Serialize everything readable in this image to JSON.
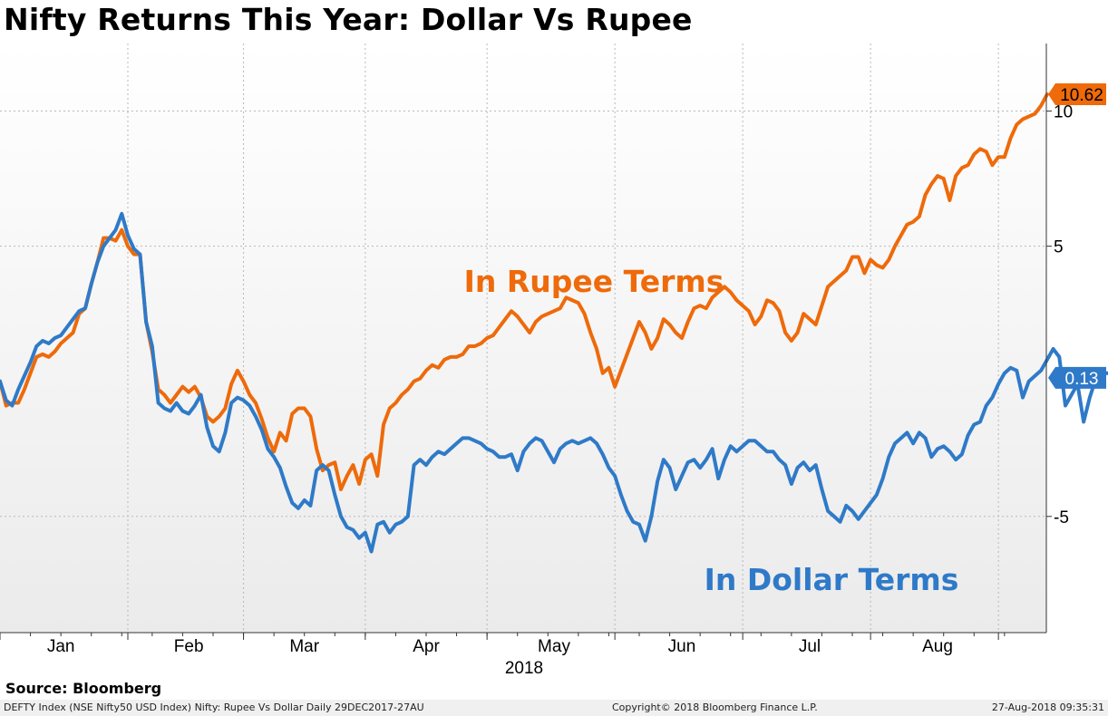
{
  "header": {
    "title": "Nifty Returns This Year: Dollar Vs Rupee"
  },
  "chart_data": {
    "type": "line",
    "title": "Nifty Returns This Year: Dollar Vs Rupee",
    "xlabel": "2018",
    "ylabel": "",
    "x_range": [
      0,
      168
    ],
    "ylim": [
      -9.3,
      12.5
    ],
    "grid": true,
    "y_ticks": [
      10,
      5,
      -5
    ],
    "y_tick_labels": [
      "10",
      "5",
      "-5"
    ],
    "month_labels": [
      {
        "label": "Jan",
        "x": 10
      },
      {
        "label": "Feb",
        "x": 31
      },
      {
        "label": "Mar",
        "x": 50
      },
      {
        "label": "Apr",
        "x": 70
      },
      {
        "label": "May",
        "x": 91
      },
      {
        "label": "Jun",
        "x": 112
      },
      {
        "label": "Jul",
        "x": 133
      },
      {
        "label": "Aug",
        "x": 154
      }
    ],
    "month_boundaries": [
      0,
      21,
      40,
      60,
      80,
      101,
      122,
      143,
      164
    ],
    "series": [
      {
        "name": "In Rupee Terms",
        "color": "#ee6a0a",
        "last_value_label": "10.62",
        "values": [
          0.0,
          -0.9,
          -0.8,
          -0.8,
          -0.3,
          0.3,
          0.9,
          1.0,
          0.9,
          1.1,
          1.4,
          1.6,
          1.8,
          2.5,
          2.7,
          3.6,
          4.4,
          5.3,
          5.3,
          5.2,
          5.6,
          5.0,
          4.7,
          4.7,
          2.2,
          1.1,
          -0.3,
          -0.5,
          -0.8,
          -0.5,
          -0.2,
          -0.4,
          -0.2,
          -0.6,
          -1.3,
          -1.5,
          -1.3,
          -1.0,
          -0.1,
          0.4,
          0.0,
          -0.5,
          -0.8,
          -1.4,
          -2.1,
          -2.6,
          -1.9,
          -2.2,
          -1.2,
          -1.0,
          -1.0,
          -1.3,
          -2.5,
          -3.3,
          -3.1,
          -3.0,
          -4.0,
          -3.5,
          -3.1,
          -3.8,
          -2.9,
          -2.7,
          -3.5,
          -1.6,
          -1.0,
          -0.8,
          -0.5,
          -0.3,
          0.0,
          0.1,
          0.4,
          0.6,
          0.5,
          0.8,
          0.9,
          0.9,
          1.0,
          1.3,
          1.3,
          1.4,
          1.6,
          1.7,
          2.0,
          2.3,
          2.6,
          2.4,
          2.1,
          1.8,
          2.2,
          2.4,
          2.5,
          2.6,
          2.7,
          3.1,
          3.0,
          2.9,
          2.5,
          1.8,
          1.2,
          0.3,
          0.5,
          -0.2,
          0.4,
          1.0,
          1.6,
          2.2,
          1.8,
          1.2,
          1.6,
          2.3,
          2.1,
          1.8,
          1.6,
          2.2,
          2.7,
          2.8,
          2.7,
          3.1,
          3.3,
          3.5,
          3.3,
          3.0,
          2.8,
          2.6,
          2.1,
          2.4,
          3.0,
          2.9,
          2.6,
          1.8,
          1.5,
          1.8,
          2.5,
          2.3,
          2.1,
          2.8,
          3.5,
          3.7,
          3.9,
          4.1,
          4.6,
          4.6,
          4.0,
          4.5,
          4.3,
          4.2,
          4.5,
          5.0,
          5.4,
          5.8,
          5.9,
          6.1,
          6.9,
          7.3,
          7.6,
          7.5,
          6.7,
          7.6,
          7.9,
          8.0,
          8.4,
          8.6,
          8.5,
          8.0,
          8.3,
          8.3,
          9.0,
          9.5,
          9.7,
          9.8,
          9.9,
          10.2,
          10.62
        ]
      },
      {
        "name": "In Dollar Terms",
        "color": "#2f7ac8",
        "last_value_label": "0.13",
        "values": [
          0.0,
          -0.7,
          -0.9,
          -0.3,
          0.2,
          0.7,
          1.3,
          1.5,
          1.4,
          1.6,
          1.7,
          2.0,
          2.3,
          2.6,
          2.7,
          3.6,
          4.4,
          5.0,
          5.3,
          5.6,
          6.2,
          5.4,
          4.9,
          4.7,
          2.2,
          1.3,
          -0.8,
          -1.0,
          -1.1,
          -0.8,
          -1.1,
          -1.2,
          -0.9,
          -0.5,
          -1.7,
          -2.4,
          -2.6,
          -1.9,
          -0.8,
          -0.6,
          -0.7,
          -0.9,
          -1.3,
          -1.8,
          -2.5,
          -2.8,
          -3.2,
          -3.9,
          -4.5,
          -4.7,
          -4.4,
          -4.6,
          -3.3,
          -3.1,
          -3.3,
          -4.2,
          -5.0,
          -5.4,
          -5.5,
          -5.8,
          -5.6,
          -6.3,
          -5.3,
          -5.2,
          -5.6,
          -5.3,
          -5.2,
          -5.0,
          -3.1,
          -2.9,
          -3.1,
          -2.8,
          -2.6,
          -2.7,
          -2.5,
          -2.3,
          -2.1,
          -2.1,
          -2.2,
          -2.3,
          -2.5,
          -2.6,
          -2.8,
          -2.8,
          -2.7,
          -3.3,
          -2.6,
          -2.3,
          -2.1,
          -2.2,
          -2.6,
          -3.0,
          -2.5,
          -2.3,
          -2.2,
          -2.3,
          -2.2,
          -2.1,
          -2.3,
          -2.7,
          -3.2,
          -3.5,
          -4.2,
          -4.8,
          -5.2,
          -5.3,
          -5.9,
          -5.0,
          -3.7,
          -2.9,
          -3.2,
          -4.0,
          -3.5,
          -3.0,
          -2.9,
          -3.2,
          -2.9,
          -2.5,
          -3.6,
          -2.9,
          -2.4,
          -2.6,
          -2.4,
          -2.2,
          -2.2,
          -2.4,
          -2.6,
          -2.6,
          -2.9,
          -3.1,
          -3.8,
          -3.2,
          -3.0,
          -3.3,
          -3.1,
          -4.0,
          -4.8,
          -5.0,
          -5.2,
          -4.6,
          -4.8,
          -5.1,
          -4.8,
          -4.5,
          -4.2,
          -3.6,
          -2.8,
          -2.3,
          -2.1,
          -1.9,
          -2.3,
          -1.9,
          -2.1,
          -2.8,
          -2.5,
          -2.4,
          -2.6,
          -2.9,
          -2.7,
          -2.0,
          -1.6,
          -1.5,
          -0.9,
          -0.6,
          -0.1,
          0.3,
          0.5,
          0.4,
          -0.6,
          0.0,
          0.2,
          0.4,
          0.8,
          1.2,
          0.9,
          -0.9,
          -0.5,
          -0.1,
          -1.5,
          -0.6,
          0.1,
          0.3,
          0.3,
          0.13
        ]
      }
    ],
    "annotations": [
      {
        "text": "In Rupee Terms",
        "color": "#ee6a0a"
      },
      {
        "text": "In Dollar Terms",
        "color": "#2f7ac8"
      }
    ]
  },
  "footer": {
    "source": "Source: Bloomberg",
    "left": "DEFTY Index (NSE Nifty50 USD Index) Nifty: Rupee Vs Dollar  Daily 29DEC2017-27AU",
    "middle": "Copyright© 2018 Bloomberg Finance L.P.",
    "right": "27-Aug-2018 09:35:31"
  }
}
